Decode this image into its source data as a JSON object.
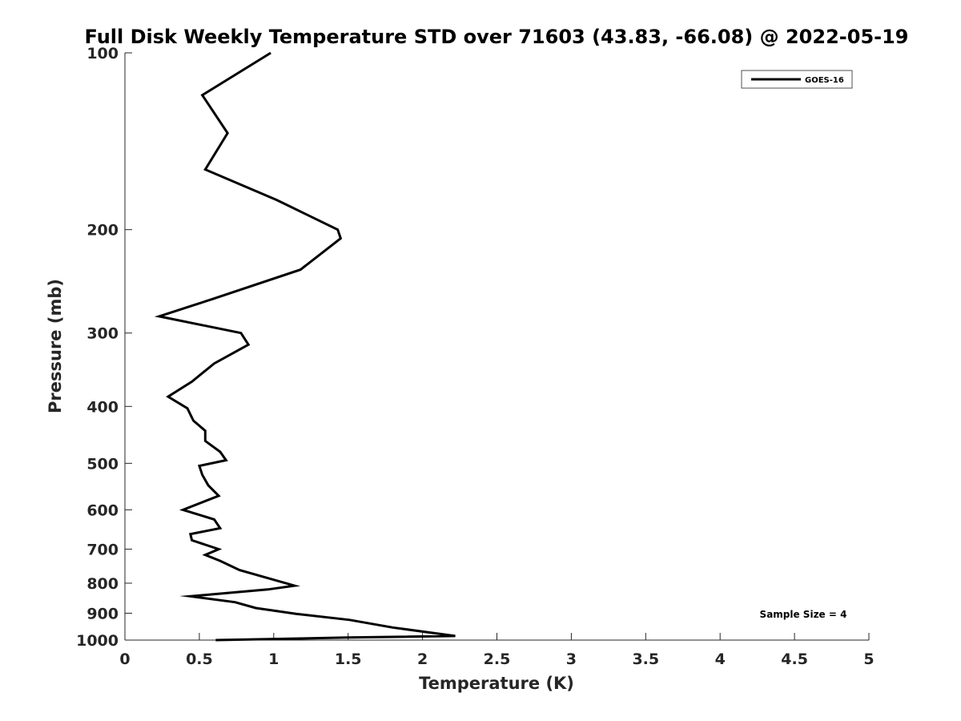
{
  "chart_data": {
    "type": "line",
    "title": "Full Disk Weekly Temperature STD over 71603 (43.83, -66.08) @ 2022-05-19",
    "xlabel": "Temperature (K)",
    "ylabel": "Pressure (mb)",
    "xlim": [
      0,
      5
    ],
    "ylim": [
      1000,
      100
    ],
    "y_scale": "log",
    "x_ticks": [
      0,
      0.5,
      1,
      1.5,
      2,
      2.5,
      3,
      3.5,
      4,
      4.5,
      5
    ],
    "x_tick_labels": [
      "0",
      "0.5",
      "1",
      "1.5",
      "2",
      "2.5",
      "3",
      "3.5",
      "4",
      "4.5",
      "5"
    ],
    "y_ticks": [
      100,
      200,
      300,
      400,
      500,
      600,
      700,
      800,
      900,
      1000
    ],
    "y_tick_labels": [
      "100",
      "200",
      "300",
      "400",
      "500",
      "600",
      "700",
      "800",
      "900",
      "1000"
    ],
    "grid": false,
    "legend_position": "top-right",
    "annotation": "Sample Size = 4",
    "series": [
      {
        "name": "GOES-16",
        "color": "#000000",
        "x": [
          0.98,
          0.52,
          0.69,
          0.54,
          1.02,
          1.43,
          1.45,
          1.18,
          0.58,
          0.23,
          0.78,
          0.83,
          0.6,
          0.45,
          0.29,
          0.42,
          0.46,
          0.54,
          0.54,
          0.64,
          0.68,
          0.5,
          0.52,
          0.56,
          0.63,
          0.39,
          0.6,
          0.64,
          0.44,
          0.45,
          0.63,
          0.54,
          0.64,
          0.77,
          1.14,
          0.96,
          0.44,
          0.74,
          0.88,
          1.15,
          1.51,
          1.8,
          2.22,
          1.5,
          0.61
        ],
        "y": [
          100,
          118,
          137,
          158,
          178,
          200,
          207,
          234,
          263,
          281,
          300,
          314,
          338,
          363,
          385,
          403,
          423,
          440,
          458,
          478,
          494,
          505,
          523,
          545,
          568,
          600,
          623,
          645,
          660,
          676,
          700,
          716,
          733,
          760,
          808,
          820,
          842,
          862,
          882,
          902,
          924,
          952,
          984,
          990,
          1000
        ]
      }
    ]
  }
}
